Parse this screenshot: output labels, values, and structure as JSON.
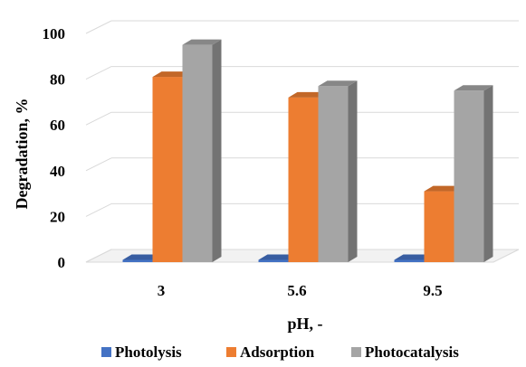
{
  "chart_data": {
    "type": "bar",
    "categories": [
      "3",
      "5.6",
      "9.5"
    ],
    "series": [
      {
        "name": "Photolysis",
        "values": [
          1,
          1,
          1
        ],
        "color": "#4472c4"
      },
      {
        "name": "Adsorption",
        "values": [
          81,
          72,
          31
        ],
        "color": "#ed7d31"
      },
      {
        "name": "Photocatalysis",
        "values": [
          95,
          77,
          75
        ],
        "color": "#a5a5a5"
      }
    ],
    "xlabel": "pH, -",
    "ylabel": "Degradation, %",
    "ylim": [
      0,
      100
    ],
    "yticks": [
      "0",
      "20",
      "40",
      "60",
      "80",
      "100"
    ],
    "grid": true,
    "legend_position": "bottom",
    "style": "3d-columns"
  }
}
